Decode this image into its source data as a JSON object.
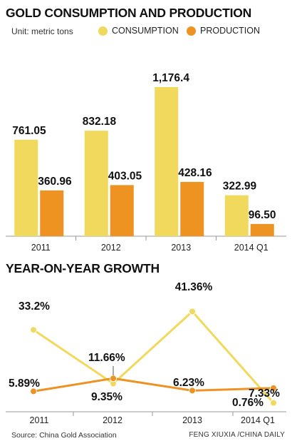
{
  "colors": {
    "consumption": "#f0d95c",
    "production": "#ee9222",
    "axis": "#999999",
    "text": "#111111"
  },
  "chart_data": [
    {
      "type": "bar",
      "title": "GOLD CONSUMPTION AND PRODUCTION",
      "unit": "Unit: metric tons",
      "categories": [
        "2011",
        "2012",
        "2013",
        "2014 Q1"
      ],
      "series": [
        {
          "name": "CONSUMPTION",
          "values": [
            761.05,
            832.18,
            1176.4,
            322.99
          ],
          "labels": [
            "761.05",
            "832.18",
            "1,176.4",
            "322.99"
          ]
        },
        {
          "name": "PRODUCTION",
          "values": [
            360.96,
            403.05,
            428.16,
            96.5
          ],
          "labels": [
            "360.96",
            "403.05",
            "428.16",
            "96.50"
          ]
        }
      ],
      "ylim": [
        0,
        1300
      ],
      "legend": "top"
    },
    {
      "type": "line",
      "title": "YEAR-ON-YEAR GROWTH",
      "categories": [
        "2011",
        "2012",
        "2013",
        "2014 Q1"
      ],
      "series": [
        {
          "name": "CONSUMPTION",
          "values": [
            33.2,
            9.35,
            41.36,
            0.76
          ],
          "labels": [
            "33.2%",
            "9.35%",
            "41.36%",
            "0.76%"
          ]
        },
        {
          "name": "PRODUCTION",
          "values": [
            5.89,
            11.66,
            6.23,
            7.33
          ],
          "labels": [
            "5.89%",
            "11.66%",
            "6.23%",
            "7.33%"
          ]
        }
      ],
      "ylim": [
        0,
        45
      ]
    }
  ],
  "footer": {
    "source": "Source: China Gold Association",
    "credit": "FENG XIUXIA /CHINA DAILY"
  }
}
